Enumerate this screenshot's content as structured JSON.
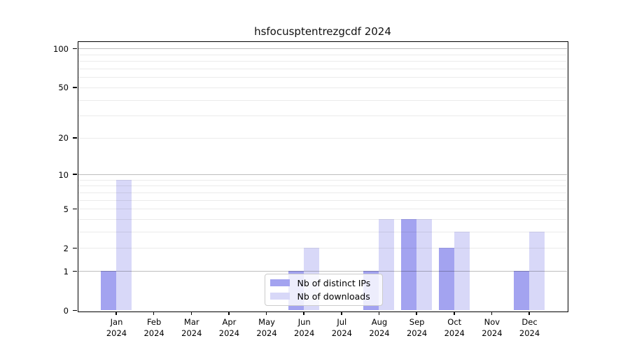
{
  "title": "hsfocusptentrezgcdf 2024",
  "chart_data": {
    "type": "bar",
    "title": "hsfocusptentrezgcdf 2024",
    "categories": [
      "Jan 2024",
      "Feb 2024",
      "Mar 2024",
      "Apr 2024",
      "May 2024",
      "Jun 2024",
      "Jul 2024",
      "Aug 2024",
      "Sep 2024",
      "Oct 2024",
      "Nov 2024",
      "Dec 2024"
    ],
    "series": [
      {
        "name": "Nb of distinct IPs",
        "color": "#a3a3f0",
        "values": [
          1,
          0,
          0,
          0,
          0,
          1,
          0,
          1,
          4,
          2,
          0,
          1
        ]
      },
      {
        "name": "Nb of downloads",
        "color": "#d8d8f8",
        "values": [
          9,
          0,
          0,
          0,
          0,
          2,
          0,
          4,
          4,
          3,
          0,
          3
        ]
      }
    ],
    "yscale": "log10(value+1)",
    "yticks": [
      0,
      1,
      2,
      5,
      10,
      20,
      50,
      100
    ],
    "yticks_minor": [
      2,
      3,
      4,
      5,
      6,
      7,
      8,
      9,
      20,
      30,
      40,
      50,
      60,
      70,
      80,
      90
    ],
    "yticks_major_grid": [
      1,
      10,
      100
    ],
    "ylim": [
      0,
      110
    ],
    "xlabel": "",
    "ylabel": "",
    "grid": "horizontal",
    "legend_position": "bottom-center"
  }
}
